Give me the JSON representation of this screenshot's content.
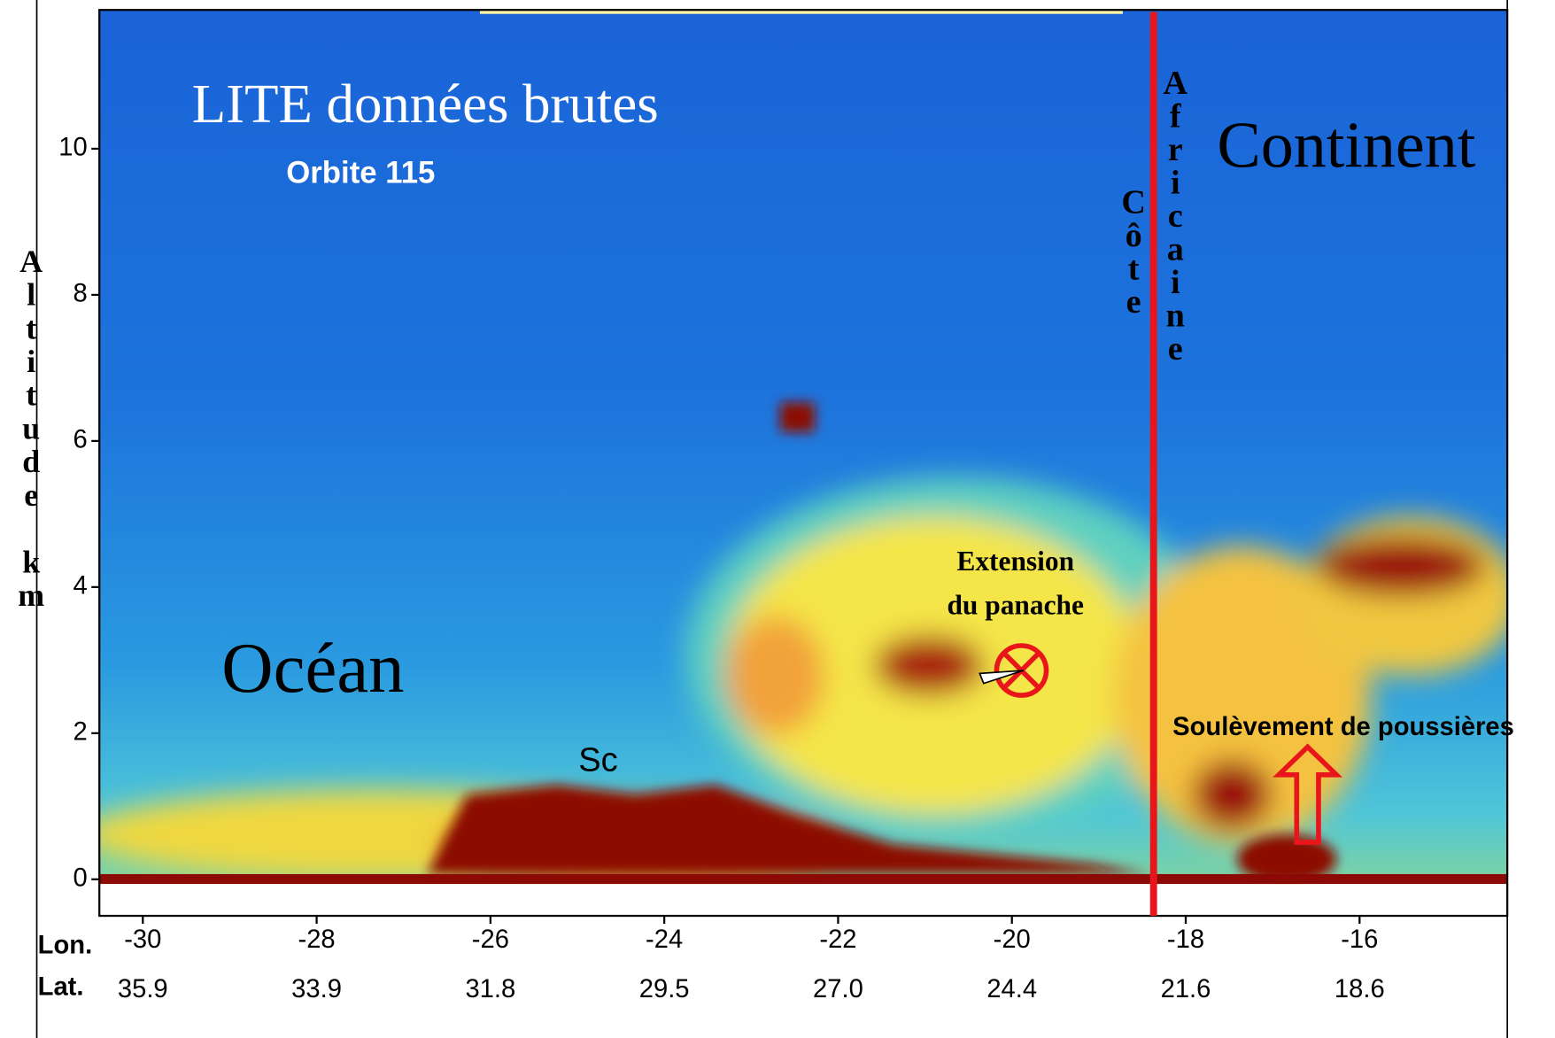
{
  "chart_data": {
    "type": "lidar-profile",
    "title": "LITE données brutes",
    "subtitle": "Orbite 115",
    "xlabel": "Lon.",
    "x2label": "Lat.",
    "ylabel": "Altitude km",
    "xlim": [
      -30.5,
      -14.3
    ],
    "xticks": [
      -30,
      -28,
      -26,
      -24,
      -22,
      -20,
      -18,
      -16
    ],
    "x2ticklabels": [
      "35.9",
      "33.9",
      "31.8",
      "29.5",
      "27.0",
      "24.4",
      "21.6",
      "18.6"
    ],
    "ylim": [
      -0.5,
      11.9
    ],
    "yticks": [
      0,
      2,
      4,
      6,
      8,
      10
    ],
    "coast_lon": -18.37,
    "coast_color": "#e8161b",
    "annotations": {
      "ocean": "Océan",
      "continent": "Continent",
      "coast": "Côte",
      "african": "Africaine",
      "plume": [
        "Extension",
        "du panache"
      ],
      "dust": "Soulèvement de poussières",
      "sc": "Sc"
    }
  }
}
